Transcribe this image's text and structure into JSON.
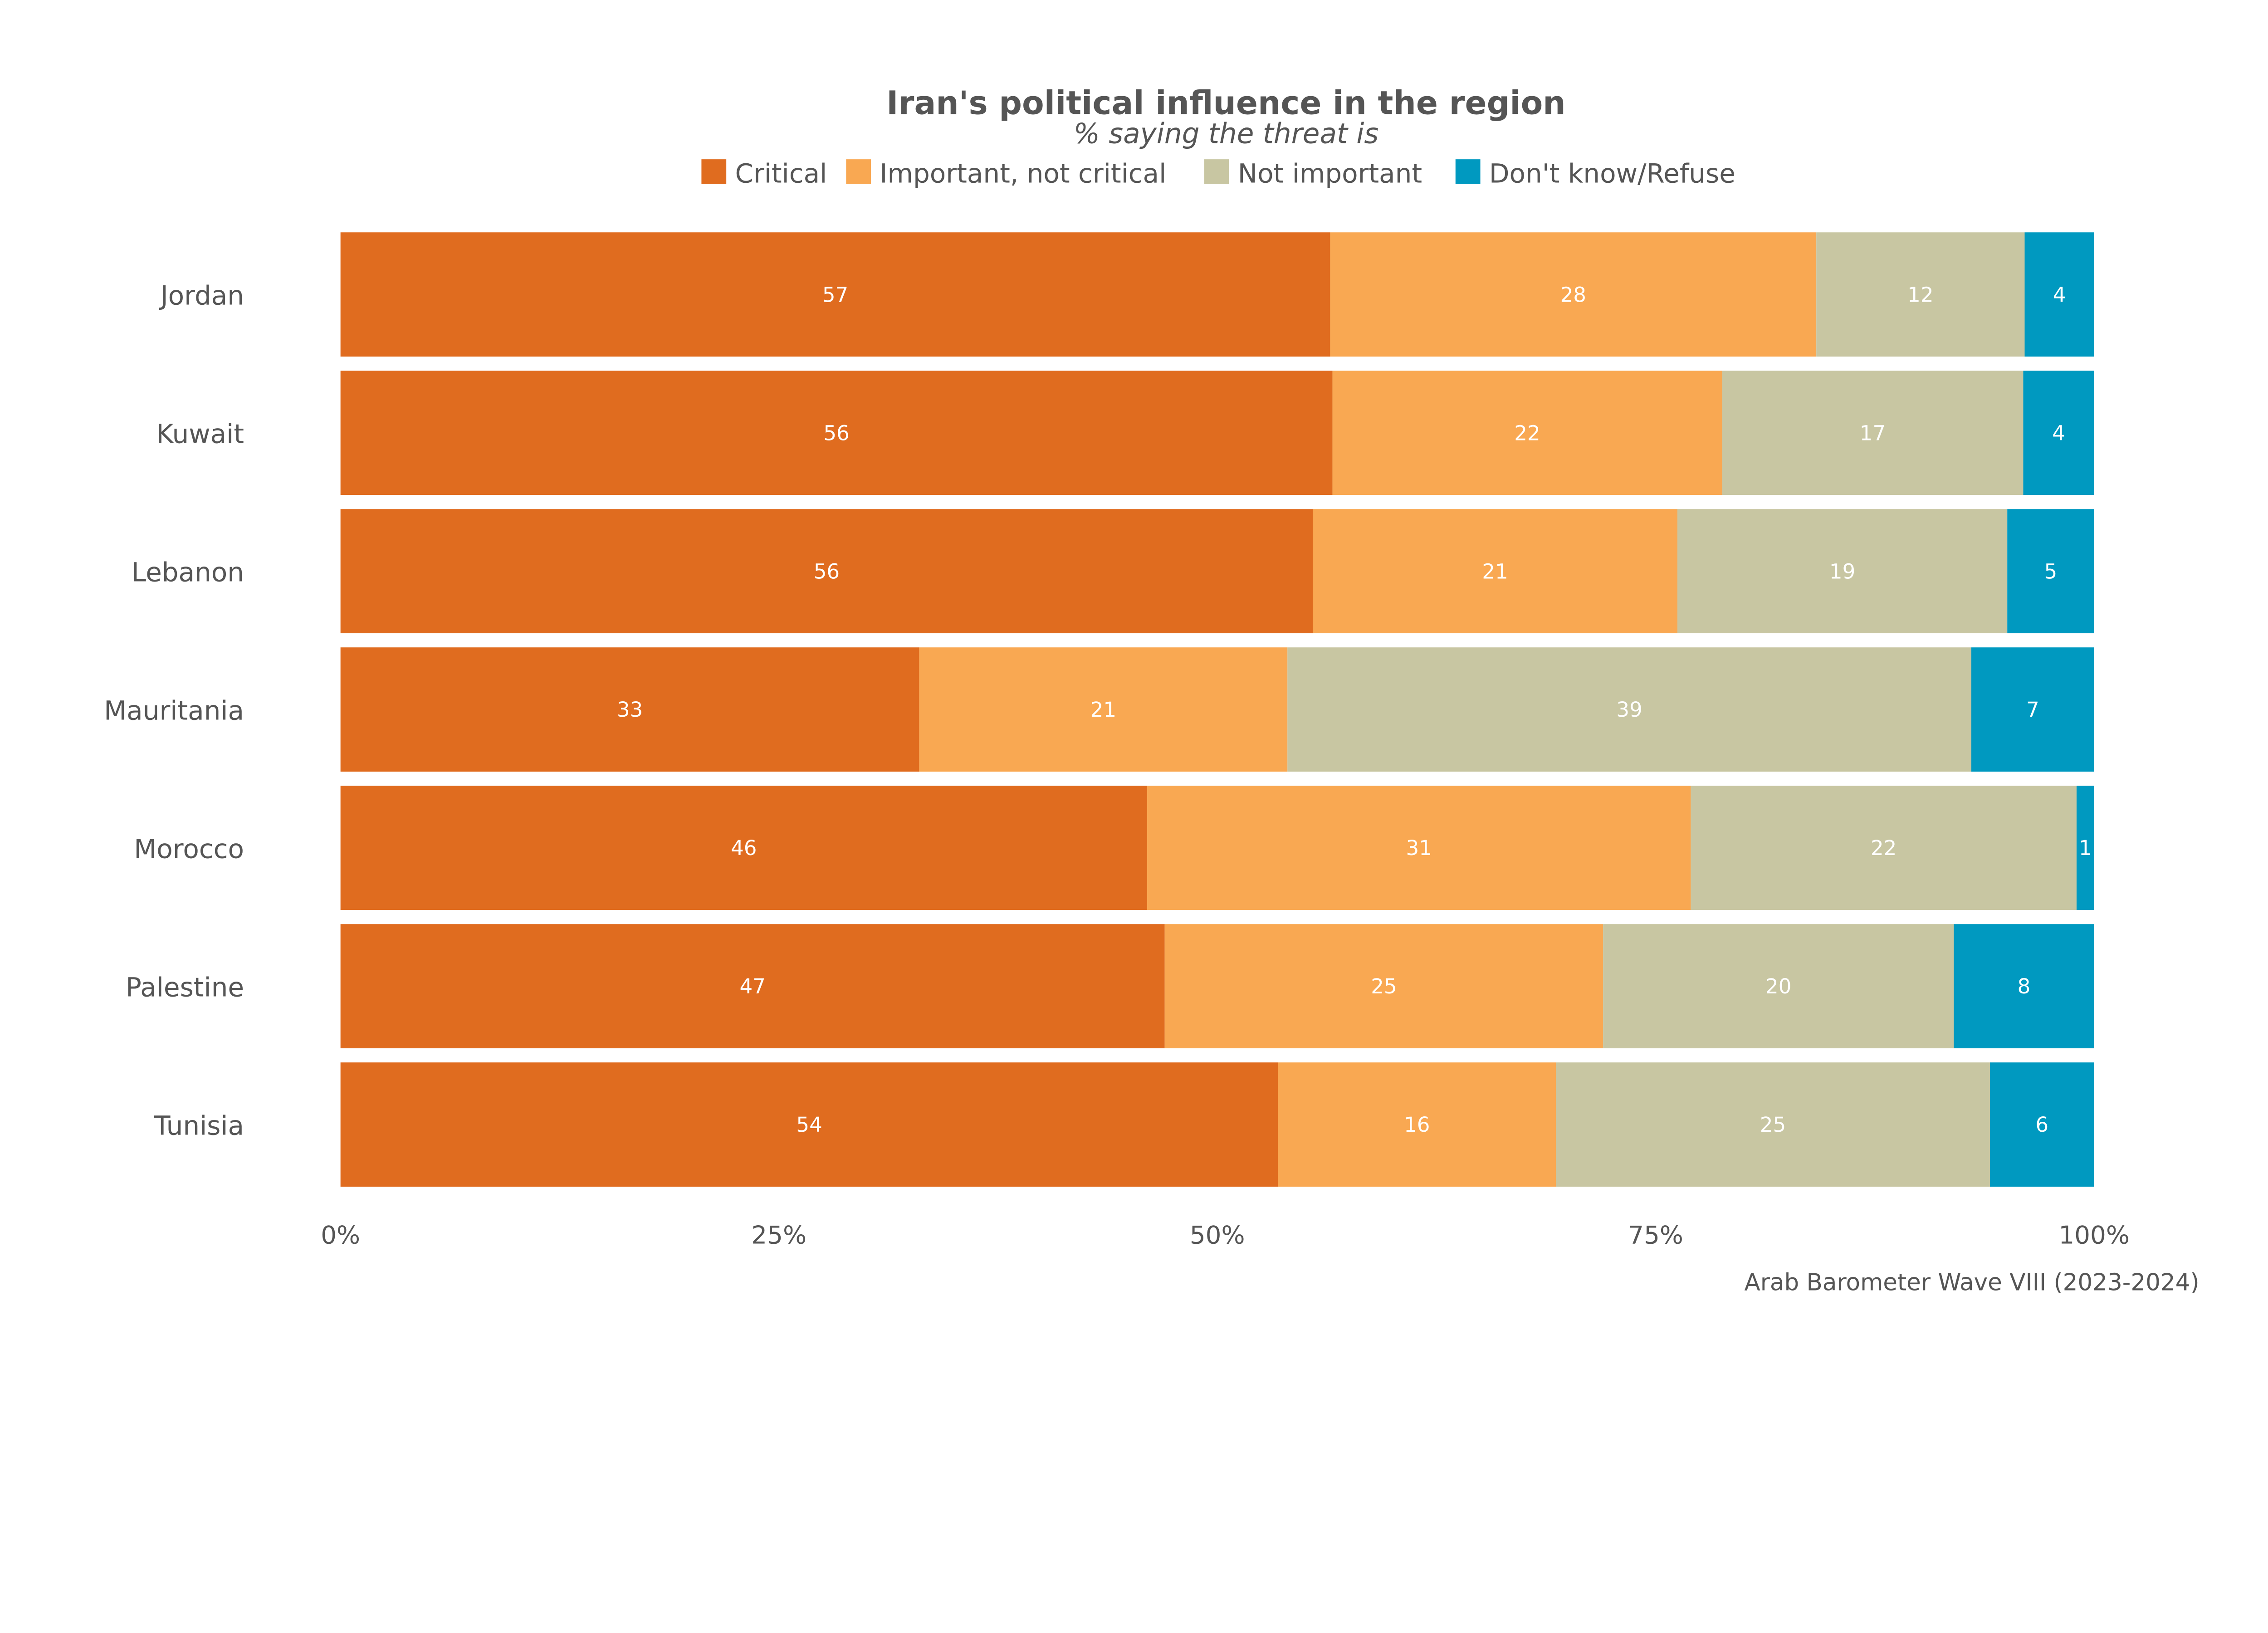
{
  "chart_data": {
    "type": "bar",
    "orientation": "horizontal",
    "stacked": true,
    "title": "Iran's political influence in the region",
    "subtitle": "% saying the threat is",
    "caption": "Arab Barometer Wave VIII (2023-2024)",
    "legend_position": "top",
    "categories": [
      "Jordan",
      "Kuwait",
      "Lebanon",
      "Mauritania",
      "Morocco",
      "Palestine",
      "Tunisia"
    ],
    "series": [
      {
        "name": "Critical",
        "color": "#E06C1F",
        "values": [
          57,
          56,
          56,
          33,
          46,
          47,
          54
        ]
      },
      {
        "name": "Important, not critical",
        "color": "#F9A852",
        "values": [
          28,
          22,
          21,
          21,
          31,
          25,
          16
        ]
      },
      {
        "name": "Not important",
        "color": "#C8C6A2",
        "values": [
          12,
          17,
          19,
          39,
          22,
          20,
          25
        ]
      },
      {
        "name": "Don't know/Refuse",
        "color": "#0099C0",
        "values": [
          4,
          4,
          5,
          7,
          1,
          8,
          6
        ]
      }
    ],
    "xlim": [
      0,
      100
    ],
    "x_ticks": [
      "0%",
      "25%",
      "50%",
      "75%",
      "100%"
    ],
    "grid": false
  }
}
